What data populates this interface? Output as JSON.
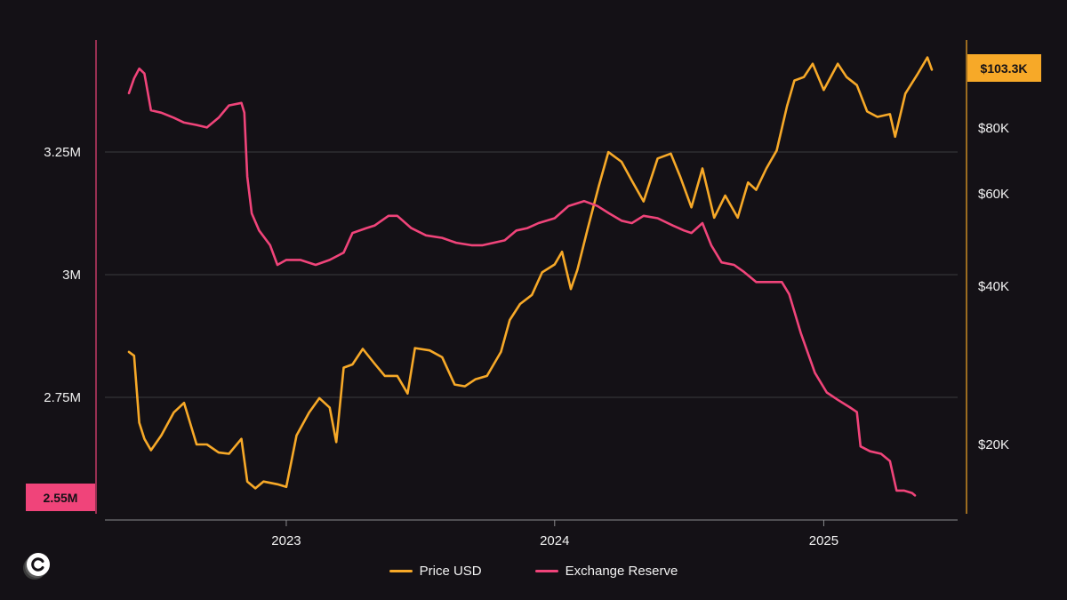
{
  "chart_data": {
    "type": "line",
    "title": "",
    "x_axis": {
      "type": "time",
      "ticks": [
        "2023",
        "2024",
        "2025"
      ],
      "range": [
        "2022-06-01",
        "2025-07-01"
      ]
    },
    "y_axis_left": {
      "series": "Exchange Reserve",
      "ticks": [
        "2.75M",
        "3M",
        "3.25M"
      ],
      "tick_values": [
        2750000,
        3000000,
        3250000
      ],
      "range": [
        2500000,
        3470000
      ],
      "current_label": "2.55M",
      "current_value": 2550000
    },
    "y_axis_right": {
      "series": "Price USD",
      "scale": "log",
      "ticks": [
        "$20K",
        "$40K",
        "$60K",
        "$80K"
      ],
      "tick_values": [
        20000,
        40000,
        60000,
        80000
      ],
      "range": [
        15000,
        115000
      ],
      "current_label": "$103.3K",
      "current_value": 103300
    },
    "grid": true,
    "legend_position": "bottom-center",
    "series": [
      {
        "name": "Price USD",
        "color": "#F7A928",
        "axis": "right",
        "points": [
          [
            "2022-06-01",
            30000
          ],
          [
            "2022-06-08",
            29500
          ],
          [
            "2022-06-15",
            22000
          ],
          [
            "2022-06-22",
            20500
          ],
          [
            "2022-07-01",
            19500
          ],
          [
            "2022-07-15",
            20800
          ],
          [
            "2022-08-01",
            23000
          ],
          [
            "2022-08-15",
            24000
          ],
          [
            "2022-09-01",
            20000
          ],
          [
            "2022-09-15",
            20000
          ],
          [
            "2022-10-01",
            19300
          ],
          [
            "2022-10-15",
            19200
          ],
          [
            "2022-11-01",
            20500
          ],
          [
            "2022-11-09",
            17000
          ],
          [
            "2022-11-20",
            16500
          ],
          [
            "2022-12-01",
            17000
          ],
          [
            "2022-12-20",
            16800
          ],
          [
            "2023-01-01",
            16600
          ],
          [
            "2023-01-15",
            20800
          ],
          [
            "2023-02-01",
            23000
          ],
          [
            "2023-02-15",
            24500
          ],
          [
            "2023-03-01",
            23500
          ],
          [
            "2023-03-10",
            20200
          ],
          [
            "2023-03-20",
            28000
          ],
          [
            "2023-04-01",
            28400
          ],
          [
            "2023-04-15",
            30400
          ],
          [
            "2023-05-01",
            28500
          ],
          [
            "2023-05-15",
            27000
          ],
          [
            "2023-06-01",
            27000
          ],
          [
            "2023-06-15",
            25000
          ],
          [
            "2023-06-25",
            30500
          ],
          [
            "2023-07-15",
            30200
          ],
          [
            "2023-08-01",
            29300
          ],
          [
            "2023-08-18",
            26000
          ],
          [
            "2023-09-01",
            25800
          ],
          [
            "2023-09-15",
            26600
          ],
          [
            "2023-10-01",
            27000
          ],
          [
            "2023-10-20",
            30000
          ],
          [
            "2023-11-01",
            34500
          ],
          [
            "2023-11-15",
            37000
          ],
          [
            "2023-12-01",
            38500
          ],
          [
            "2023-12-15",
            42500
          ],
          [
            "2024-01-01",
            44000
          ],
          [
            "2024-01-11",
            46500
          ],
          [
            "2024-01-23",
            39500
          ],
          [
            "2024-02-01",
            43000
          ],
          [
            "2024-02-15",
            51500
          ],
          [
            "2024-03-01",
            62000
          ],
          [
            "2024-03-14",
            72000
          ],
          [
            "2024-04-01",
            69000
          ],
          [
            "2024-04-15",
            63500
          ],
          [
            "2024-05-01",
            58000
          ],
          [
            "2024-05-20",
            70000
          ],
          [
            "2024-06-07",
            71500
          ],
          [
            "2024-06-20",
            64500
          ],
          [
            "2024-07-05",
            56500
          ],
          [
            "2024-07-20",
            67000
          ],
          [
            "2024-08-05",
            54000
          ],
          [
            "2024-08-20",
            59500
          ],
          [
            "2024-09-06",
            54000
          ],
          [
            "2024-09-20",
            63000
          ],
          [
            "2024-10-01",
            61000
          ],
          [
            "2024-10-15",
            67000
          ],
          [
            "2024-10-29",
            72500
          ],
          [
            "2024-11-12",
            88000
          ],
          [
            "2024-11-22",
            98500
          ],
          [
            "2024-12-05",
            100000
          ],
          [
            "2024-12-17",
            106000
          ],
          [
            "2025-01-01",
            94500
          ],
          [
            "2025-01-20",
            106000
          ],
          [
            "2025-02-01",
            100000
          ],
          [
            "2025-02-15",
            96500
          ],
          [
            "2025-03-01",
            86000
          ],
          [
            "2025-03-15",
            84000
          ],
          [
            "2025-04-01",
            85000
          ],
          [
            "2025-04-08",
            77000
          ],
          [
            "2025-04-22",
            93000
          ],
          [
            "2025-05-08",
            101000
          ],
          [
            "2025-05-22",
            109000
          ],
          [
            "2025-05-28",
            103300
          ]
        ]
      },
      {
        "name": "Exchange Reserve",
        "color": "#F0447A",
        "axis": "left",
        "points": [
          [
            "2022-06-01",
            3370000
          ],
          [
            "2022-06-08",
            3400000
          ],
          [
            "2022-06-15",
            3420000
          ],
          [
            "2022-06-22",
            3410000
          ],
          [
            "2022-07-01",
            3335000
          ],
          [
            "2022-07-15",
            3330000
          ],
          [
            "2022-08-01",
            3320000
          ],
          [
            "2022-08-15",
            3310000
          ],
          [
            "2022-09-01",
            3305000
          ],
          [
            "2022-09-15",
            3300000
          ],
          [
            "2022-10-01",
            3320000
          ],
          [
            "2022-10-15",
            3345000
          ],
          [
            "2022-11-01",
            3350000
          ],
          [
            "2022-11-05",
            3330000
          ],
          [
            "2022-11-09",
            3200000
          ],
          [
            "2022-11-15",
            3125000
          ],
          [
            "2022-11-25",
            3090000
          ],
          [
            "2022-12-10",
            3060000
          ],
          [
            "2022-12-20",
            3020000
          ],
          [
            "2023-01-01",
            3030000
          ],
          [
            "2023-01-20",
            3030000
          ],
          [
            "2023-02-10",
            3020000
          ],
          [
            "2023-03-01",
            3030000
          ],
          [
            "2023-03-20",
            3045000
          ],
          [
            "2023-04-01",
            3085000
          ],
          [
            "2023-04-20",
            3095000
          ],
          [
            "2023-05-01",
            3100000
          ],
          [
            "2023-05-20",
            3120000
          ],
          [
            "2023-06-01",
            3120000
          ],
          [
            "2023-06-20",
            3095000
          ],
          [
            "2023-07-10",
            3080000
          ],
          [
            "2023-08-01",
            3075000
          ],
          [
            "2023-08-20",
            3065000
          ],
          [
            "2023-09-10",
            3060000
          ],
          [
            "2023-09-25",
            3060000
          ],
          [
            "2023-10-10",
            3065000
          ],
          [
            "2023-10-25",
            3070000
          ],
          [
            "2023-11-10",
            3090000
          ],
          [
            "2023-11-25",
            3095000
          ],
          [
            "2023-12-10",
            3105000
          ],
          [
            "2024-01-01",
            3115000
          ],
          [
            "2024-01-20",
            3140000
          ],
          [
            "2024-02-10",
            3150000
          ],
          [
            "2024-02-28",
            3140000
          ],
          [
            "2024-03-15",
            3125000
          ],
          [
            "2024-04-01",
            3110000
          ],
          [
            "2024-04-15",
            3105000
          ],
          [
            "2024-05-01",
            3120000
          ],
          [
            "2024-05-20",
            3115000
          ],
          [
            "2024-06-10",
            3100000
          ],
          [
            "2024-06-25",
            3090000
          ],
          [
            "2024-07-05",
            3085000
          ],
          [
            "2024-07-20",
            3105000
          ],
          [
            "2024-08-01",
            3060000
          ],
          [
            "2024-08-15",
            3025000
          ],
          [
            "2024-09-01",
            3020000
          ],
          [
            "2024-09-15",
            3005000
          ],
          [
            "2024-10-01",
            2985000
          ],
          [
            "2024-10-15",
            2985000
          ],
          [
            "2024-11-05",
            2985000
          ],
          [
            "2024-11-15",
            2960000
          ],
          [
            "2024-12-01",
            2880000
          ],
          [
            "2024-12-20",
            2800000
          ],
          [
            "2025-01-05",
            2760000
          ],
          [
            "2025-01-20",
            2745000
          ],
          [
            "2025-02-05",
            2730000
          ],
          [
            "2025-02-15",
            2720000
          ],
          [
            "2025-02-20",
            2650000
          ],
          [
            "2025-03-05",
            2640000
          ],
          [
            "2025-03-20",
            2635000
          ],
          [
            "2025-04-01",
            2620000
          ],
          [
            "2025-04-10",
            2560000
          ],
          [
            "2025-04-20",
            2560000
          ],
          [
            "2025-05-01",
            2555000
          ],
          [
            "2025-05-05",
            2550000
          ]
        ]
      }
    ]
  },
  "legend": {
    "items": [
      {
        "label": "Price USD",
        "color": "#F7A928"
      },
      {
        "label": "Exchange Reserve",
        "color": "#F0447A"
      }
    ]
  },
  "logo": {
    "icon": "cryptoquant-logo-icon"
  }
}
